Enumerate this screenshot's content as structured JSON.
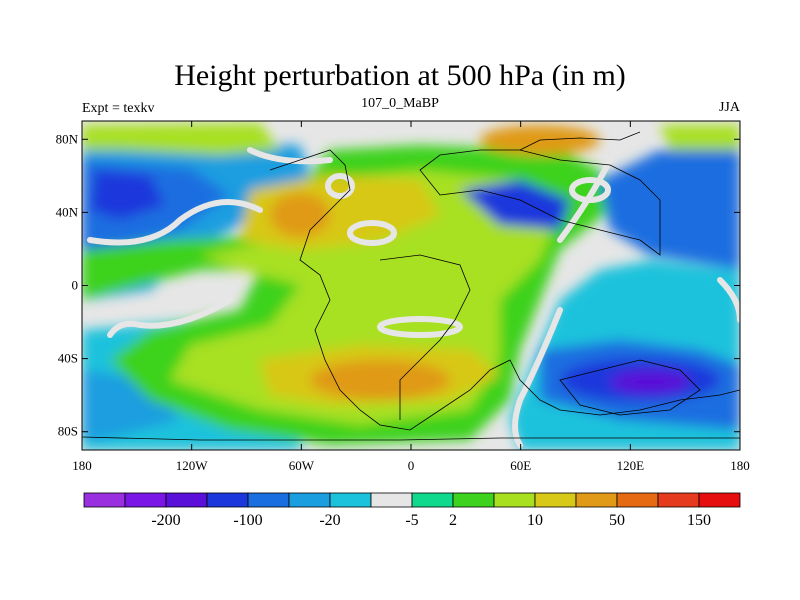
{
  "title": "Height perturbation at 500 hPa (in m)",
  "subtitle_left": "Expt = texkv",
  "subtitle_center": "107_0_MaBP",
  "subtitle_right": "JJA",
  "x_ticks": [
    "180",
    "120W",
    "60W",
    "0",
    "60E",
    "120E",
    "180"
  ],
  "y_ticks": [
    "80N",
    "40N",
    "0",
    "40S",
    "80S"
  ],
  "colorbar": {
    "colors": [
      "#9a2fe0",
      "#7a16e6",
      "#5a10d8",
      "#1c38dc",
      "#1a6ee0",
      "#1a9ee0",
      "#1cc2dc",
      "#e6e6e6",
      "#10d88c",
      "#3cd21e",
      "#a8e020",
      "#d8c818",
      "#e09a18",
      "#e66a12",
      "#e63a1e",
      "#e60e0e"
    ],
    "labels": [
      {
        "text": "-200",
        "boundary": 2
      },
      {
        "text": "-100",
        "boundary": 4
      },
      {
        "text": "-20",
        "boundary": 6
      },
      {
        "text": "-5",
        "boundary": 8
      },
      {
        "text": "2",
        "boundary": 9
      },
      {
        "text": "10",
        "boundary": 11
      },
      {
        "text": "50",
        "boundary": 13
      },
      {
        "text": "150",
        "boundary": 15
      }
    ]
  },
  "map": {
    "background_color": "#e6e6e6",
    "lon_range": [
      -180,
      180
    ],
    "lat_range": [
      -90,
      90
    ]
  }
}
